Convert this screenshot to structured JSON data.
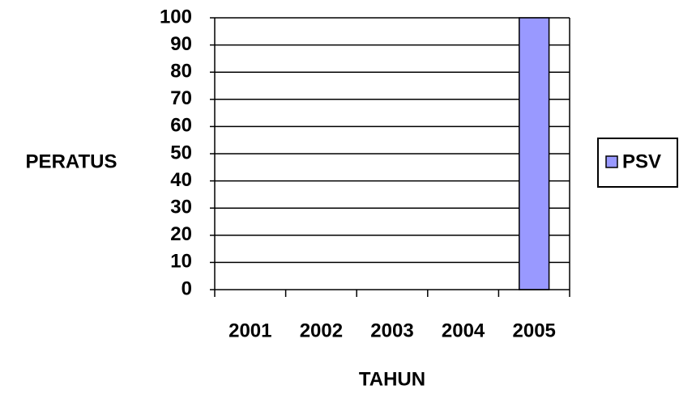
{
  "chart_data": {
    "type": "bar",
    "title": "",
    "xlabel": "TAHUN",
    "ylabel": "PERATUS",
    "categories": [
      "2001",
      "2002",
      "2003",
      "2004",
      "2005"
    ],
    "series": [
      {
        "name": "PSV",
        "values": [
          0,
          0,
          0,
          0,
          100
        ],
        "color": "#9999ff"
      }
    ],
    "ylim": [
      0,
      100
    ],
    "yticks": [
      "0",
      "10",
      "20",
      "30",
      "40",
      "50",
      "60",
      "70",
      "80",
      "90",
      "100"
    ],
    "grid": true,
    "legend": "right"
  }
}
